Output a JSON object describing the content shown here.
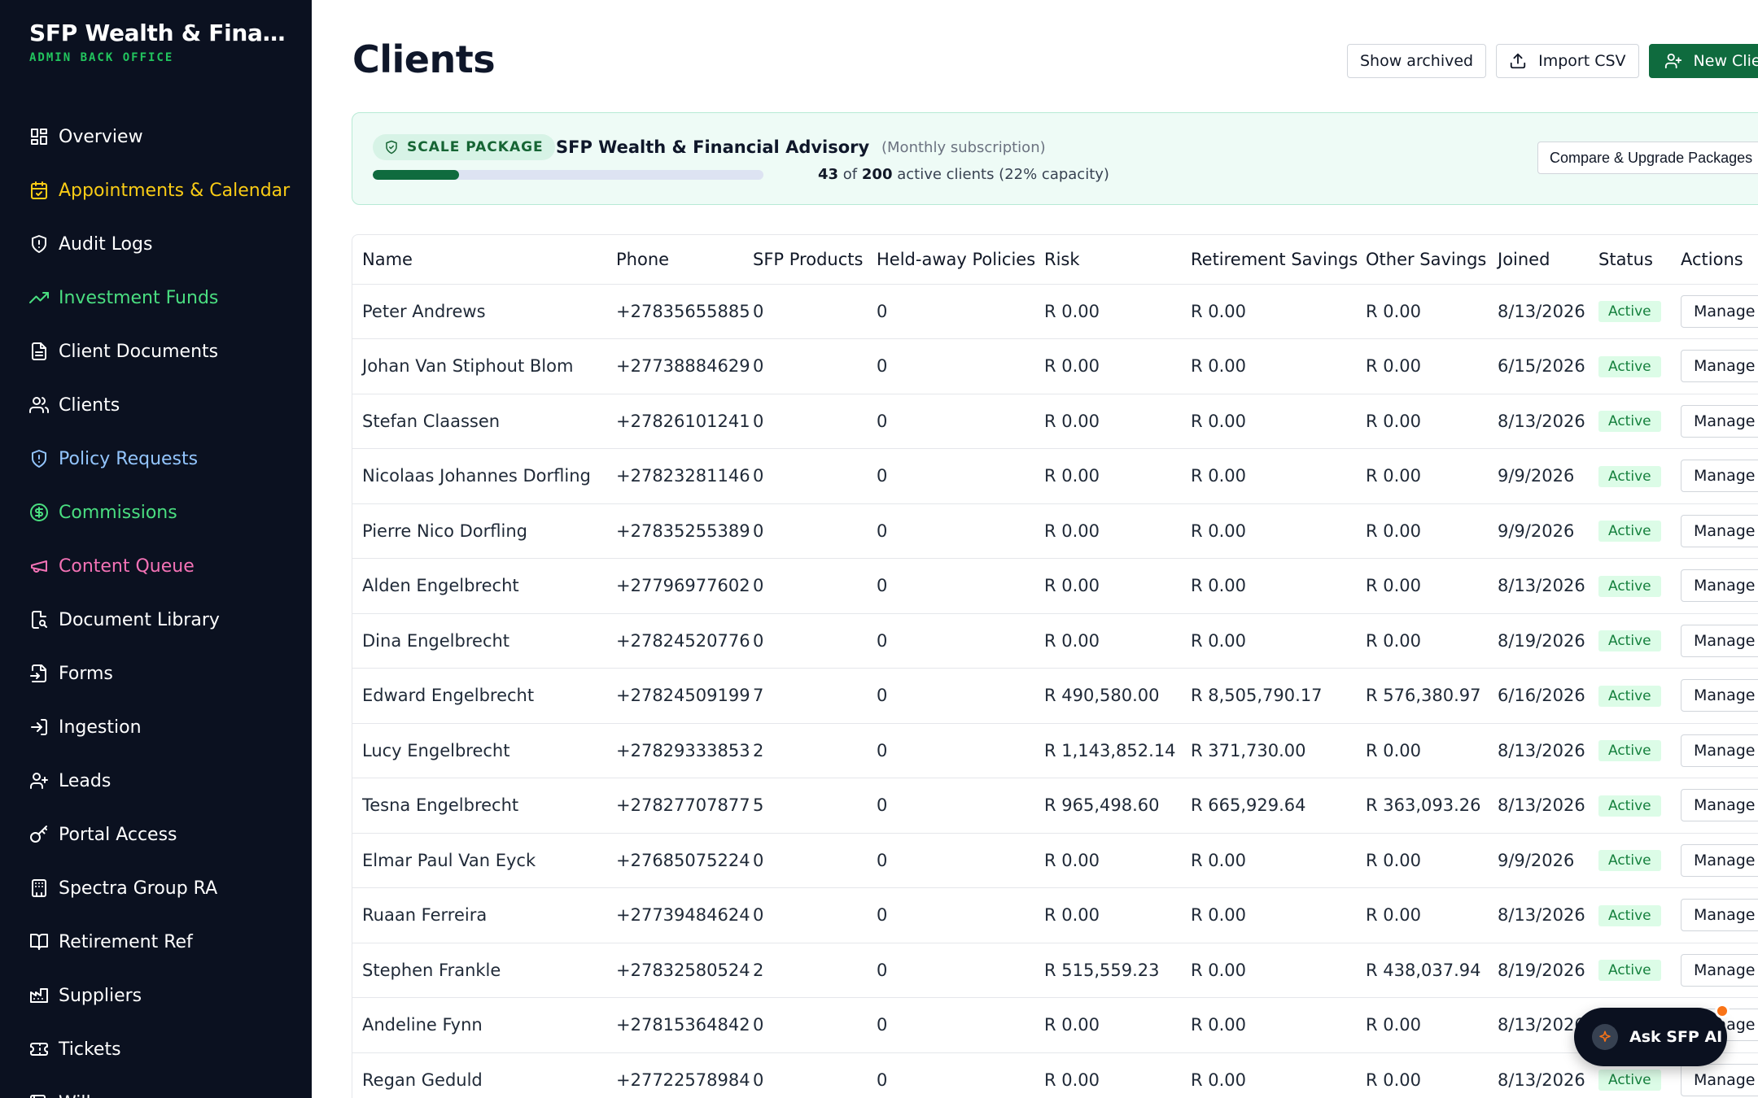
{
  "sidebar": {
    "title": "SFP Wealth & Financi...",
    "subtitle": "ADMIN BACK OFFICE",
    "items": [
      {
        "label": "Overview",
        "icon": "grid-icon",
        "color": "#ffffff"
      },
      {
        "label": "Appointments & Calendar",
        "icon": "calendar-icon",
        "color": "#facc15"
      },
      {
        "label": "Audit Logs",
        "icon": "shield-alert-icon",
        "color": "#ffffff"
      },
      {
        "label": "Investment Funds",
        "icon": "trending-up-icon",
        "color": "#4ade80"
      },
      {
        "label": "Client Documents",
        "icon": "file-text-icon",
        "color": "#ffffff"
      },
      {
        "label": "Clients",
        "icon": "users-icon",
        "color": "#ffffff"
      },
      {
        "label": "Policy Requests",
        "icon": "shield-icon",
        "color": "#93c5fd"
      },
      {
        "label": "Commissions",
        "icon": "dollar-circle-icon",
        "color": "#4ade80"
      },
      {
        "label": "Content Queue",
        "icon": "megaphone-icon",
        "color": "#f472b6"
      },
      {
        "label": "Document Library",
        "icon": "file-search-icon",
        "color": "#ffffff"
      },
      {
        "label": "Forms",
        "icon": "file-input-icon",
        "color": "#ffffff"
      },
      {
        "label": "Ingestion",
        "icon": "log-in-icon",
        "color": "#ffffff"
      },
      {
        "label": "Leads",
        "icon": "user-plus-icon",
        "color": "#ffffff"
      },
      {
        "label": "Portal Access",
        "icon": "key-icon",
        "color": "#ffffff"
      },
      {
        "label": "Spectra Group RA",
        "icon": "building-icon",
        "color": "#ffffff"
      },
      {
        "label": "Retirement Ref",
        "icon": "book-open-icon",
        "color": "#ffffff"
      },
      {
        "label": "Suppliers",
        "icon": "factory-icon",
        "color": "#ffffff"
      },
      {
        "label": "Tickets",
        "icon": "ticket-icon",
        "color": "#ffffff"
      },
      {
        "label": "Wills",
        "icon": "scroll-icon",
        "color": "#ffffff"
      }
    ]
  },
  "header": {
    "title": "Clients",
    "show_archived": "Show archived",
    "import_csv": "Import CSV",
    "new_client": "New Client"
  },
  "package": {
    "badge": "SCALE PACKAGE",
    "name": "SFP Wealth & Financial Advisory",
    "billing": "(Monthly subscription)",
    "active": "43",
    "of": "of",
    "limit": "200",
    "suffix": "active clients (22% capacity)",
    "capacity_fraction": 0.22,
    "upgrade_label": "Compare & Upgrade Packages"
  },
  "table": {
    "columns": [
      "Name",
      "Phone",
      "SFP Products",
      "Held-away Policies",
      "Risk",
      "Retirement Savings",
      "Other Savings",
      "Joined",
      "Status",
      "Actions"
    ],
    "rows": [
      {
        "name": "Peter Andrews",
        "phone": "+27835655885",
        "products": "0",
        "heldaway": "0",
        "risk": "R 0.00",
        "retirement": "R 0.00",
        "other": "R 0.00",
        "joined": "8/13/2026",
        "status": "Active",
        "action": "Manage"
      },
      {
        "name": "Johan Van Stiphout Blom",
        "phone": "+27738884629",
        "products": "0",
        "heldaway": "0",
        "risk": "R 0.00",
        "retirement": "R 0.00",
        "other": "R 0.00",
        "joined": "6/15/2026",
        "status": "Active",
        "action": "Manage"
      },
      {
        "name": "Stefan Claassen",
        "phone": "+27826101241",
        "products": "0",
        "heldaway": "0",
        "risk": "R 0.00",
        "retirement": "R 0.00",
        "other": "R 0.00",
        "joined": "8/13/2026",
        "status": "Active",
        "action": "Manage"
      },
      {
        "name": "Nicolaas Johannes Dorfling",
        "phone": "+27823281146",
        "products": "0",
        "heldaway": "0",
        "risk": "R 0.00",
        "retirement": "R 0.00",
        "other": "R 0.00",
        "joined": "9/9/2026",
        "status": "Active",
        "action": "Manage"
      },
      {
        "name": "Pierre Nico Dorfling",
        "phone": "+27835255389",
        "products": "0",
        "heldaway": "0",
        "risk": "R 0.00",
        "retirement": "R 0.00",
        "other": "R 0.00",
        "joined": "9/9/2026",
        "status": "Active",
        "action": "Manage"
      },
      {
        "name": "Alden Engelbrecht",
        "phone": "+27796977602",
        "products": "0",
        "heldaway": "0",
        "risk": "R 0.00",
        "retirement": "R 0.00",
        "other": "R 0.00",
        "joined": "8/13/2026",
        "status": "Active",
        "action": "Manage"
      },
      {
        "name": "Dina Engelbrecht",
        "phone": "+27824520776",
        "products": "0",
        "heldaway": "0",
        "risk": "R 0.00",
        "retirement": "R 0.00",
        "other": "R 0.00",
        "joined": "8/19/2026",
        "status": "Active",
        "action": "Manage"
      },
      {
        "name": "Edward Engelbrecht",
        "phone": "+27824509199",
        "products": "7",
        "heldaway": "0",
        "risk": "R 490,580.00",
        "retirement": "R 8,505,790.17",
        "other": "R 576,380.97",
        "joined": "6/16/2026",
        "status": "Active",
        "action": "Manage"
      },
      {
        "name": "Lucy Engelbrecht",
        "phone": "+27829333853",
        "products": "2",
        "heldaway": "0",
        "risk": "R 1,143,852.14",
        "retirement": "R 371,730.00",
        "other": "R 0.00",
        "joined": "8/13/2026",
        "status": "Active",
        "action": "Manage"
      },
      {
        "name": "Tesna Engelbrecht",
        "phone": "+27827707877",
        "products": "5",
        "heldaway": "0",
        "risk": "R 965,498.60",
        "retirement": "R 665,929.64",
        "other": "R 363,093.26",
        "joined": "8/13/2026",
        "status": "Active",
        "action": "Manage"
      },
      {
        "name": "Elmar Paul Van Eyck",
        "phone": "+27685075224",
        "products": "0",
        "heldaway": "0",
        "risk": "R 0.00",
        "retirement": "R 0.00",
        "other": "R 0.00",
        "joined": "9/9/2026",
        "status": "Active",
        "action": "Manage"
      },
      {
        "name": "Ruaan Ferreira",
        "phone": "+27739484624",
        "products": "0",
        "heldaway": "0",
        "risk": "R 0.00",
        "retirement": "R 0.00",
        "other": "R 0.00",
        "joined": "8/13/2026",
        "status": "Active",
        "action": "Manage"
      },
      {
        "name": "Stephen Frankle",
        "phone": "+27832580524",
        "products": "2",
        "heldaway": "0",
        "risk": "R 515,559.23",
        "retirement": "R 0.00",
        "other": "R 438,037.94",
        "joined": "8/19/2026",
        "status": "Active",
        "action": "Manage"
      },
      {
        "name": "Andeline Fynn",
        "phone": "+27815364842",
        "products": "0",
        "heldaway": "0",
        "risk": "R 0.00",
        "retirement": "R 0.00",
        "other": "R 0.00",
        "joined": "8/13/2026",
        "status": "Active",
        "action": "Manage"
      },
      {
        "name": "Regan Geduld",
        "phone": "+27722578984",
        "products": "0",
        "heldaway": "0",
        "risk": "R 0.00",
        "retirement": "R 0.00",
        "other": "R 0.00",
        "joined": "8/13/2026",
        "status": "Active",
        "action": "Manage"
      }
    ]
  },
  "ask_ai": {
    "label": "Ask SFP AI"
  }
}
